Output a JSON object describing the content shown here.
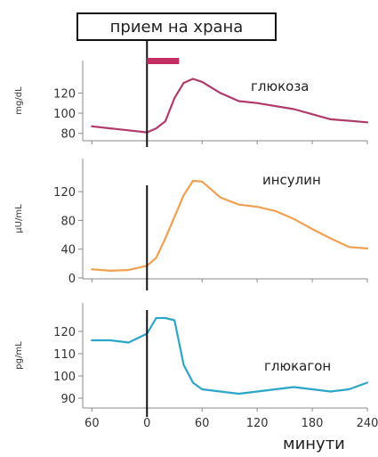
{
  "meal_label": "прием на храна",
  "colors": {
    "glucose": "#b03a6b",
    "insulin": "#f0a050",
    "glucagon": "#2ba5c8",
    "meal_bar": "#c42e63",
    "axis": "#888888"
  },
  "chart_data": [
    {
      "type": "line",
      "id": "glucose",
      "series": [
        {
          "name": "глюкоза",
          "x": [
            -60,
            -40,
            -20,
            0,
            10,
            20,
            30,
            40,
            50,
            60,
            80,
            100,
            120,
            160,
            200,
            240
          ],
          "y": [
            87,
            85,
            83,
            81,
            85,
            92,
            115,
            130,
            134,
            131,
            120,
            112,
            110,
            104,
            94,
            91
          ]
        }
      ],
      "ylabel": "mg/dL",
      "yticks": [
        80,
        100,
        120
      ],
      "ylim": [
        78,
        138
      ],
      "xlim": [
        -70,
        240
      ]
    },
    {
      "type": "line",
      "id": "insulin",
      "series": [
        {
          "name": "инсулин",
          "x": [
            -60,
            -40,
            -20,
            0,
            10,
            20,
            30,
            40,
            50,
            60,
            80,
            100,
            120,
            140,
            160,
            180,
            200,
            220,
            240
          ],
          "y": [
            12,
            10,
            11,
            17,
            28,
            55,
            85,
            115,
            135,
            134,
            112,
            102,
            99,
            93,
            82,
            68,
            55,
            43,
            41
          ]
        }
      ],
      "ylabel": "µU/mL",
      "yticks": [
        0,
        40,
        80,
        120
      ],
      "ylim": [
        0,
        140
      ],
      "xlim": [
        -70,
        240
      ]
    },
    {
      "type": "line",
      "id": "glucagon",
      "series": [
        {
          "name": "глюкагон",
          "x": [
            -60,
            -40,
            -20,
            0,
            10,
            20,
            30,
            40,
            50,
            60,
            80,
            100,
            120,
            160,
            200,
            220,
            240
          ],
          "y": [
            116,
            116,
            115,
            119,
            126,
            126,
            125,
            105,
            97,
            94,
            93,
            92,
            93,
            95,
            93,
            94,
            97
          ]
        }
      ],
      "ylabel": "pg/mL",
      "yticks": [
        90,
        100,
        110,
        120
      ],
      "ylim": [
        88,
        128
      ],
      "xlim": [
        -70,
        240
      ]
    }
  ],
  "x_ticks": [
    {
      "value": -60,
      "label": "60"
    },
    {
      "value": 0,
      "label": "0"
    },
    {
      "value": 60,
      "label": "60"
    },
    {
      "value": 120,
      "label": "120"
    },
    {
      "value": 180,
      "label": "180"
    },
    {
      "value": 240,
      "label": "240"
    }
  ],
  "meal_marker": {
    "x": 0,
    "meal_duration": [
      0,
      35
    ]
  },
  "xlabel": "минути"
}
